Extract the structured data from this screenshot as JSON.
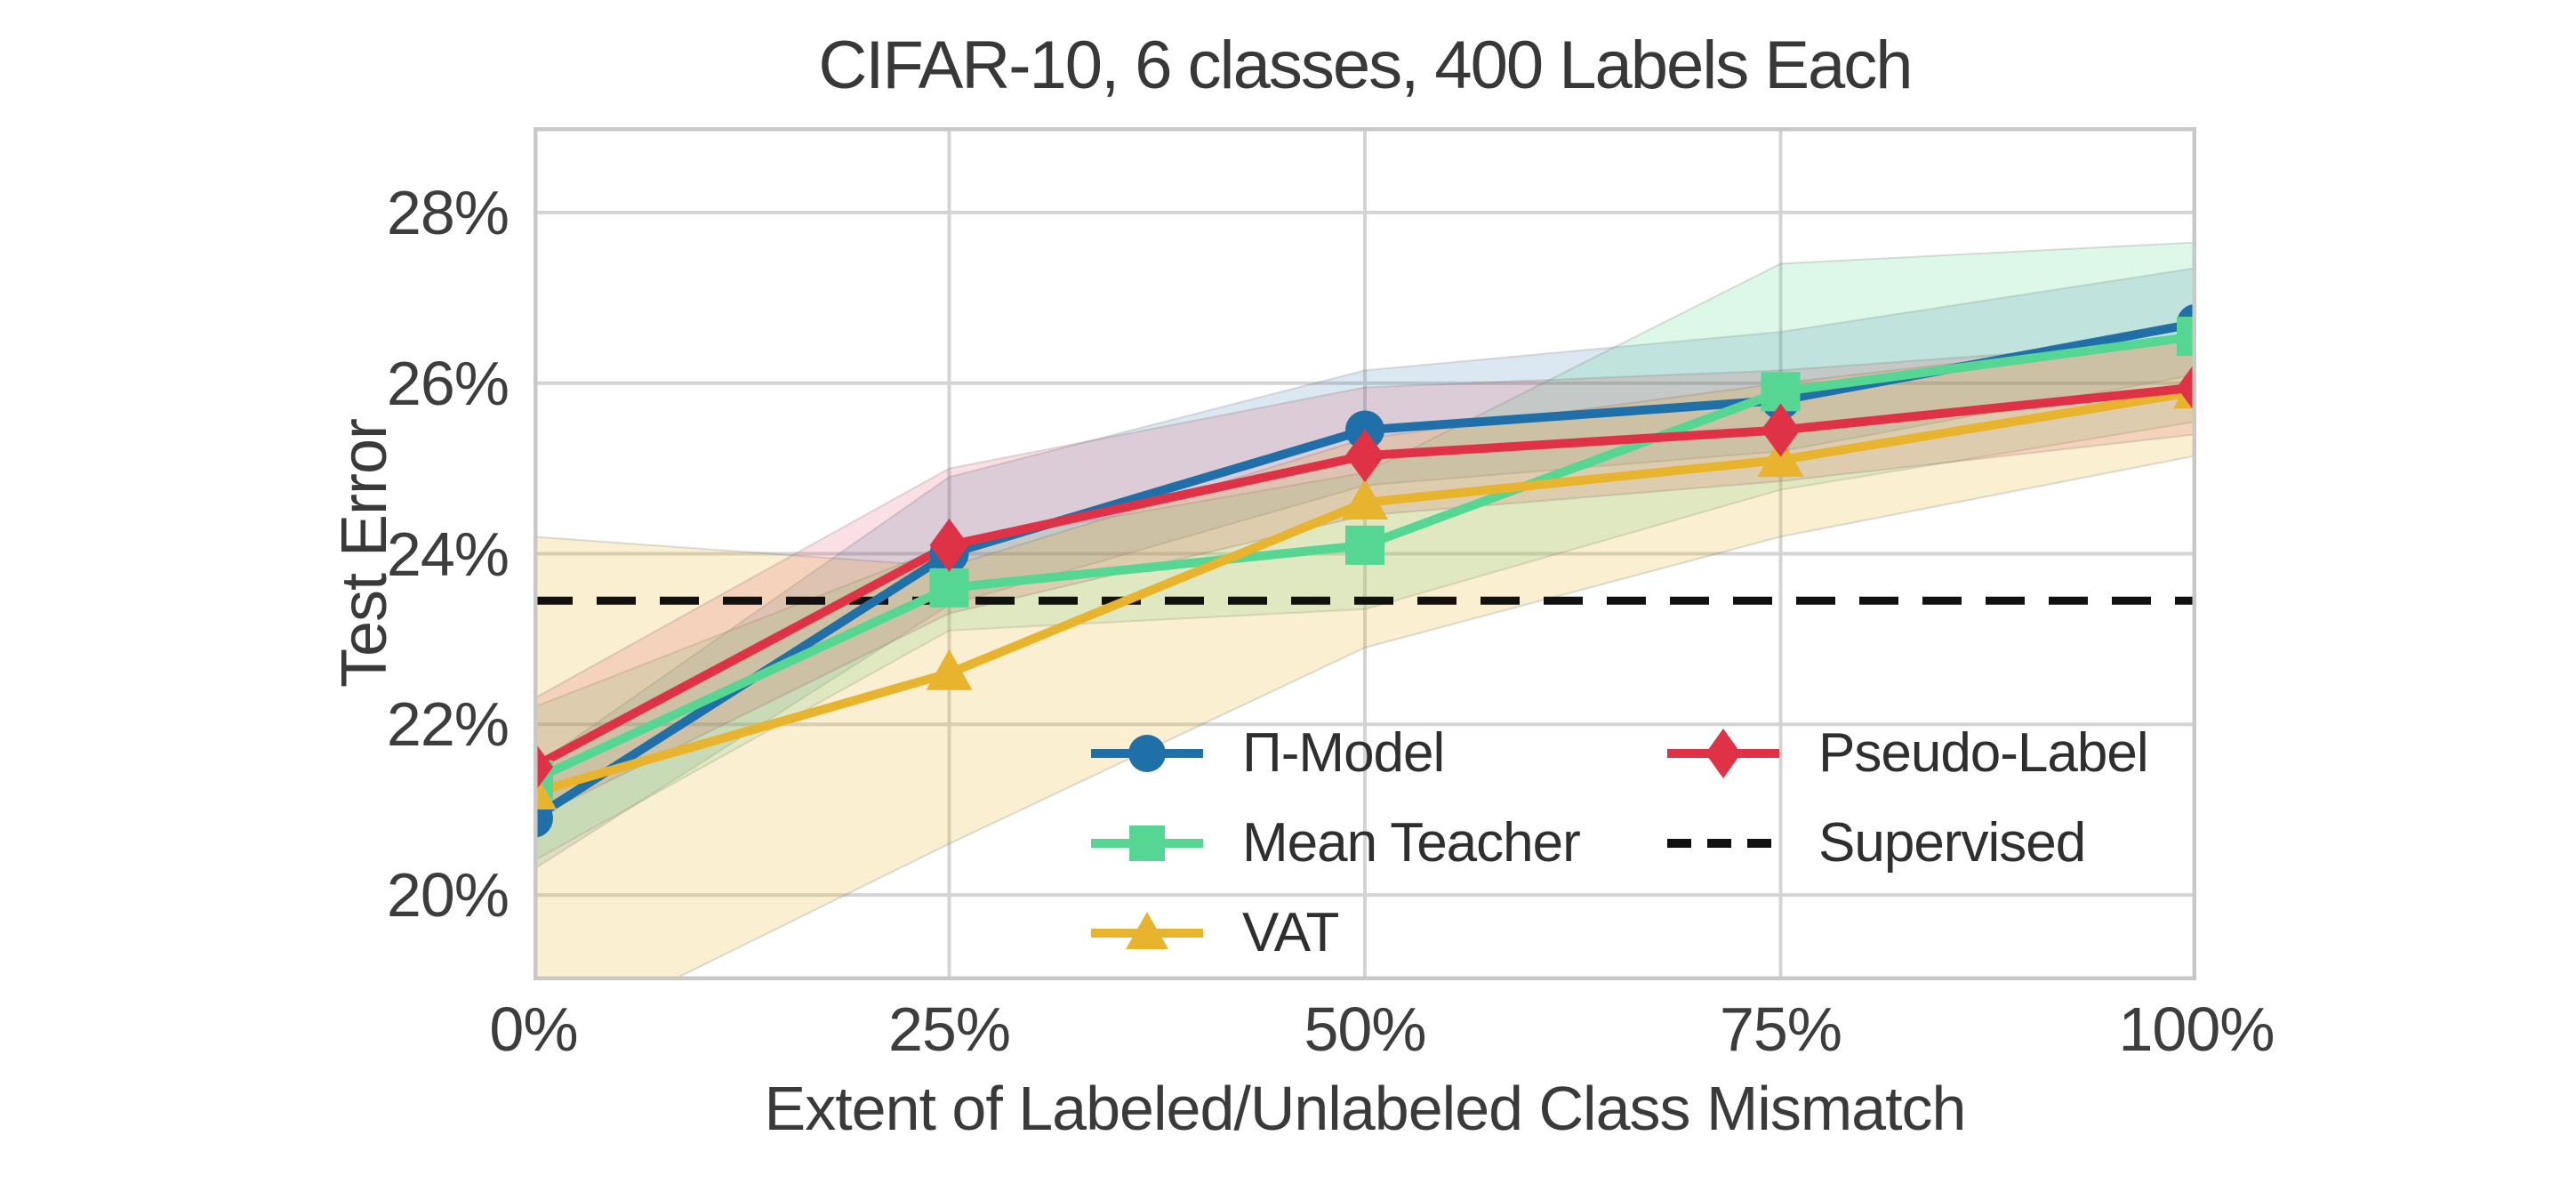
{
  "figure": {
    "title": "CIFAR-10, 6 classes, 400 Labels Each",
    "x_axis_label": "Extent of Labeled/Unlabeled Class Mismatch",
    "y_axis_label": "Test Error"
  },
  "colors": {
    "pi_model": "#1f6fa8",
    "mean_teacher": "#55d693",
    "vat": "#e8b42e",
    "pseudo_label": "#e03247",
    "supervised": "#111111",
    "grid": "#d4d4d4",
    "plot_border": "#c8c8c8",
    "text": "#3a3a3a",
    "background": "#ffffff"
  },
  "chart_data": {
    "type": "line",
    "title": "CIFAR-10, 6 classes, 400 Labels Each",
    "xlabel": "Extent of Labeled/Unlabeled Class Mismatch",
    "ylabel": "Test Error",
    "x": [
      0,
      25,
      50,
      75,
      100
    ],
    "x_tick_labels": [
      "0%",
      "25%",
      "50%",
      "75%",
      "100%"
    ],
    "y_ticks": [
      20,
      22,
      24,
      26,
      28
    ],
    "y_tick_labels": [
      "20%",
      "22%",
      "24%",
      "26%",
      "28%"
    ],
    "xlim": [
      0,
      100
    ],
    "ylim": [
      19,
      29
    ],
    "grid": true,
    "legend_position": "lower right inside plot, two columns, no frame",
    "series": [
      {
        "name": "Π-Model",
        "key": "pi_model",
        "marker": "circle",
        "style": "solid",
        "color": "#1f6fa8",
        "values": [
          20.9,
          24.0,
          25.45,
          25.8,
          26.7
        ],
        "band_low": [
          20.3,
          23.4,
          24.8,
          25.2,
          26.1
        ],
        "band_high": [
          21.5,
          24.9,
          26.15,
          26.6,
          27.35
        ],
        "band_opacity": 0.16
      },
      {
        "name": "Mean Teacher",
        "key": "mean_teacher",
        "marker": "square",
        "style": "solid",
        "color": "#55d693",
        "values": [
          21.35,
          23.6,
          24.1,
          25.9,
          26.55
        ],
        "band_low": [
          20.4,
          23.1,
          23.35,
          24.75,
          25.55
        ],
        "band_high": [
          22.2,
          24.1,
          24.95,
          27.4,
          27.65
        ],
        "band_opacity": 0.2
      },
      {
        "name": "VAT",
        "key": "vat",
        "marker": "triangle",
        "style": "solid",
        "color": "#e8b42e",
        "values": [
          21.2,
          22.6,
          24.6,
          25.1,
          25.9
        ],
        "band_low": [
          18.2,
          20.6,
          22.9,
          24.2,
          25.15
        ],
        "band_high": [
          24.2,
          23.85,
          25.35,
          26.0,
          26.55
        ],
        "band_opacity": 0.22
      },
      {
        "name": "Pseudo-Label",
        "key": "pseudo_label",
        "marker": "diamond",
        "style": "solid",
        "color": "#e03247",
        "values": [
          21.5,
          24.1,
          25.15,
          25.45,
          25.95
        ],
        "band_low": [
          20.9,
          23.3,
          24.45,
          24.85,
          25.4
        ],
        "band_high": [
          22.3,
          25.0,
          25.95,
          26.15,
          26.5
        ],
        "band_opacity": 0.15
      },
      {
        "name": "Supervised",
        "key": "supervised",
        "marker": "none",
        "style": "dashed",
        "color": "#111111",
        "values": [
          23.45,
          23.45,
          23.45,
          23.45,
          23.45
        ]
      }
    ]
  },
  "legend": {
    "columns": [
      {
        "items": [
          {
            "label": "Π-Model",
            "series": "pi_model"
          },
          {
            "label": "Mean Teacher",
            "series": "mean_teacher"
          },
          {
            "label": "VAT",
            "series": "vat"
          }
        ]
      },
      {
        "items": [
          {
            "label": "Pseudo-Label",
            "series": "pseudo_label"
          },
          {
            "label": "Supervised",
            "series": "supervised"
          }
        ]
      }
    ]
  }
}
